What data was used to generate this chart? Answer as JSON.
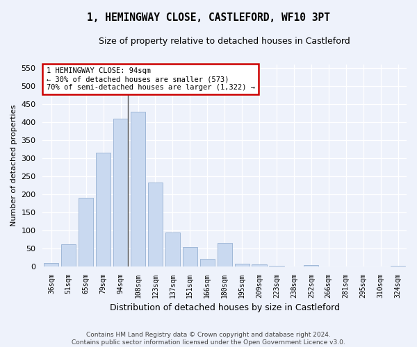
{
  "title": "1, HEMINGWAY CLOSE, CASTLEFORD, WF10 3PT",
  "subtitle": "Size of property relative to detached houses in Castleford",
  "xlabel": "Distribution of detached houses by size in Castleford",
  "ylabel": "Number of detached properties",
  "categories": [
    "36sqm",
    "51sqm",
    "65sqm",
    "79sqm",
    "94sqm",
    "108sqm",
    "123sqm",
    "137sqm",
    "151sqm",
    "166sqm",
    "180sqm",
    "195sqm",
    "209sqm",
    "223sqm",
    "238sqm",
    "252sqm",
    "266sqm",
    "281sqm",
    "295sqm",
    "310sqm",
    "324sqm"
  ],
  "values": [
    10,
    62,
    190,
    315,
    410,
    430,
    232,
    93,
    53,
    20,
    65,
    8,
    5,
    2,
    0,
    3,
    0,
    0,
    0,
    0,
    2
  ],
  "bar_color": "#c9d9f0",
  "bar_edge_color": "#a0b8d8",
  "property_line_idx": 4,
  "annotation_line1": "1 HEMINGWAY CLOSE: 94sqm",
  "annotation_line2": "← 30% of detached houses are smaller (573)",
  "annotation_line3": "70% of semi-detached houses are larger (1,322) →",
  "annotation_box_color": "#ffffff",
  "annotation_box_edge_color": "#cc0000",
  "vline_color": "#555555",
  "footer_line1": "Contains HM Land Registry data © Crown copyright and database right 2024.",
  "footer_line2": "Contains public sector information licensed under the Open Government Licence v3.0.",
  "background_color": "#eef2fb",
  "plot_background_color": "#eef2fb",
  "grid_color": "#ffffff",
  "ylim": [
    0,
    560
  ],
  "yticks": [
    0,
    50,
    100,
    150,
    200,
    250,
    300,
    350,
    400,
    450,
    500,
    550
  ]
}
